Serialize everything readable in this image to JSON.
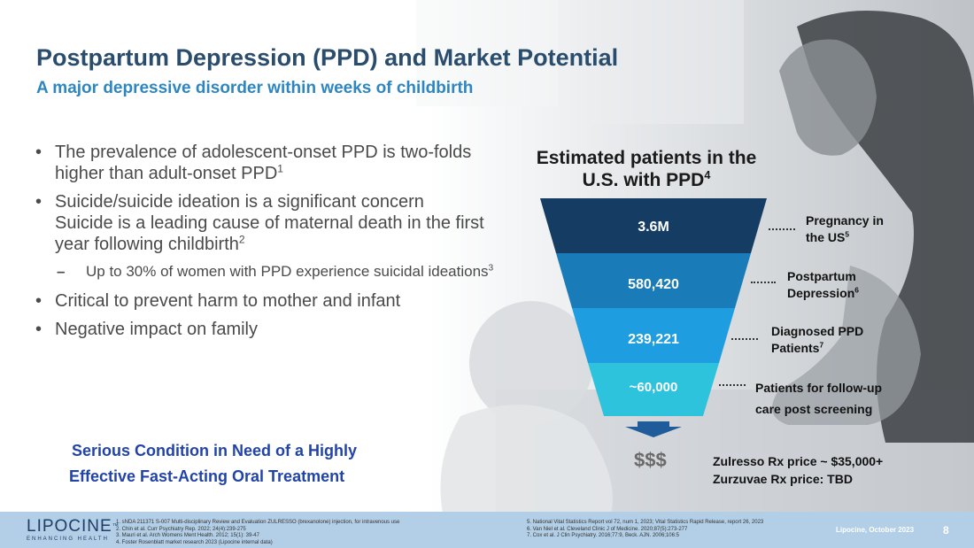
{
  "slide": {
    "title": "Postpartum Depression (PPD) and Market Potential",
    "subtitle": "A major depressive disorder within weeks of childbirth"
  },
  "bullets": [
    {
      "text": "The prevalence of adolescent-onset PPD is two-folds higher than adult-onset PPD",
      "ref": "1"
    },
    {
      "text_line1": "Suicide/suicide ideation is a significant concern",
      "text_line2": "Suicide is a leading cause of maternal death in the first year following childbirth",
      "ref": "2"
    },
    {
      "text": "Up to 30% of women with PPD experience suicidal ideations",
      "ref": "3"
    },
    {
      "text": "Critical to prevent harm to mother and infant"
    },
    {
      "text": "Negative impact on family"
    }
  ],
  "bullet_glyph": "•",
  "dash_glyph": "–",
  "callout": {
    "line1": "Serious Condition in Need of a Highly",
    "line2": "Effective Fast-Acting Oral Treatment"
  },
  "funnel": {
    "title_line1": "Estimated patients in the",
    "title_line2": "U.S. with PPD",
    "title_ref": "4",
    "colors": [
      "#153d63",
      "#1a7bb9",
      "#1e9ee0",
      "#2dc3dd"
    ],
    "arrow_color": "#1f5c99",
    "segments": [
      {
        "value": "3.6M",
        "label_line1": "Pregnancy in",
        "label_line2": "the US",
        "ref": "5"
      },
      {
        "value": "580,420",
        "label_line1": "Postpartum",
        "label_line2": "Depression",
        "ref": "6"
      },
      {
        "value": "239,221",
        "label_line1": "Diagnosed PPD",
        "label_line2": "Patients",
        "ref": "7"
      },
      {
        "value": "~60,000",
        "label_line1": "Patients for follow-up",
        "label_line2": "care post screening",
        "ref": ""
      }
    ]
  },
  "pricing": {
    "symbol": "$$$",
    "line1": "Zulresso Rx price ~ $35,000+",
    "line2": "Zurzuvae Rx price: TBD"
  },
  "footer": {
    "logo_main": "LIPOCINE",
    "logo_tm": "™",
    "logo_sub": "ENHANCING HEALTH",
    "refs_left": [
      "1. sNDA 211371 S-007 Multi-disciplinary Review and Evaluation ZULRESSO (brexanolone) injection, for intravenous use",
      "2. Chin et al. Curr Psychiatry Rep. 2022; 24(4):239-275",
      "3. Mauri et al. Arch Womens Ment Health. 2012; 15(1): 39-47",
      "4. Foster Rosenblatt market research 2023 (Lipocine internal data)"
    ],
    "refs_right": [
      "5. National Vital Statistics Report vol 72, num 1, 2023; Vital Statistics Rapid Release, report 26, 2023",
      "6. Van Niel et al. Cleveland Clinic J of Medicine. 2020;87(5):273-277",
      "7. Cox et al. J Clin Psychiatry. 2016;77:9, Beck. AJN. 2006;106:5"
    ],
    "date": "Lipocine, October 2023",
    "page": "8"
  }
}
